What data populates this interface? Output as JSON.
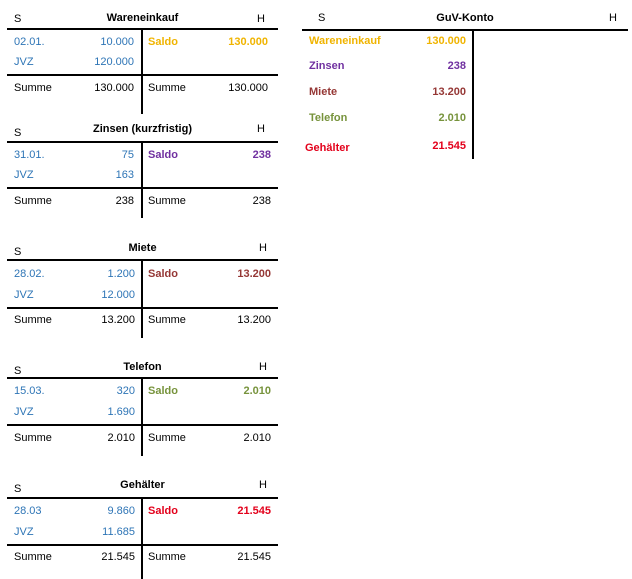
{
  "colors": {
    "blue": "#2e75b6",
    "wareneinkauf": "#f0b400",
    "zinsen": "#7030a0",
    "miete": "#953735",
    "telefon": "#77933c",
    "gehaelter": "#e3001b"
  },
  "accounts": [
    {
      "title": "Wareneinkauf",
      "soll": "S",
      "haben": "H",
      "row1_label": "02.01.",
      "row1_value": "10.000",
      "row2_label": "JVZ",
      "row2_value": "120.000",
      "saldo_label": "Saldo",
      "saldo_value": "130.000",
      "sum_label_left": "Summe",
      "sum_left": "130.000",
      "sum_label_right": "Summe",
      "sum_right": "130.000"
    },
    {
      "title": "Zinsen (kurzfristig)",
      "soll": "S",
      "haben": "H",
      "row1_label": "31.01.",
      "row1_value": "75",
      "row2_label": "JVZ",
      "row2_value": "163",
      "saldo_label": "Saldo",
      "saldo_value": "238",
      "sum_label_left": "Summe",
      "sum_left": "238",
      "sum_label_right": "Summe",
      "sum_right": "238"
    },
    {
      "title": "Miete",
      "soll": "S",
      "haben": "H",
      "row1_label": "28.02.",
      "row1_value": "1.200",
      "row2_label": "JVZ",
      "row2_value": "12.000",
      "saldo_label": "Saldo",
      "saldo_value": "13.200",
      "sum_label_left": "Summe",
      "sum_left": "13.200",
      "sum_label_right": "Summe",
      "sum_right": "13.200"
    },
    {
      "title": "Telefon",
      "soll": "S",
      "haben": "H",
      "row1_label": "15.03.",
      "row1_value": "320",
      "row2_label": "JVZ",
      "row2_value": "1.690",
      "saldo_label": "Saldo",
      "saldo_value": "2.010",
      "sum_label_left": "Summe",
      "sum_left": "2.010",
      "sum_label_right": "Summe",
      "sum_right": "2.010"
    },
    {
      "title": "Gehälter",
      "soll": "S",
      "haben": "H",
      "row1_label": "28.03",
      "row1_value": "9.860",
      "row2_label": "JVZ",
      "row2_value": "11.685",
      "saldo_label": "Saldo",
      "saldo_value": "21.545",
      "sum_label_left": "Summe",
      "sum_left": "21.545",
      "sum_label_right": "Summe",
      "sum_right": "21.545"
    }
  ],
  "guv": {
    "title": "GuV-Konto",
    "soll": "S",
    "haben": "H",
    "rows": [
      {
        "label": "Wareneinkauf",
        "value": "130.000"
      },
      {
        "label": "Zinsen",
        "value": "238"
      },
      {
        "label": "Miete",
        "value": "13.200"
      },
      {
        "label": "Telefon",
        "value": "2.010"
      },
      {
        "label": "Gehälter",
        "value": "21.545"
      }
    ]
  }
}
